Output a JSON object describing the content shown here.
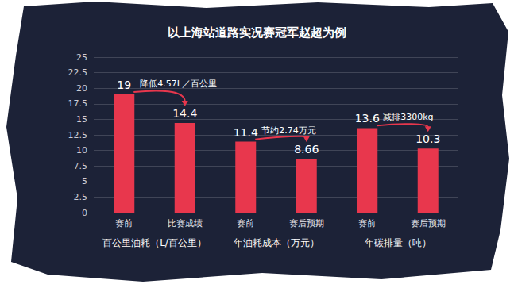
{
  "chart_data": {
    "type": "bar",
    "title": "以上海站道路实况赛冠军赵超为例",
    "categories": [
      "赛前",
      "比赛成绩",
      "赛前",
      "赛后预期",
      "赛前",
      "赛后预期"
    ],
    "group_labels": [
      "百公里油耗（L/百公里）",
      "年油耗成本（万元）",
      "年碳排量（吨）"
    ],
    "values": [
      19,
      14.4,
      11.4,
      8.66,
      13.6,
      10.3
    ],
    "annotations": [
      "降低4.57L／百公里",
      "节约2.74万元",
      "减排3300kg"
    ],
    "color": "#e8374d",
    "ylim": [
      0,
      25
    ],
    "yticks": [
      0,
      2.5,
      5,
      7.5,
      10,
      12.5,
      15,
      17.5,
      20,
      22.5,
      25
    ],
    "grid": true,
    "data_labels": true
  }
}
